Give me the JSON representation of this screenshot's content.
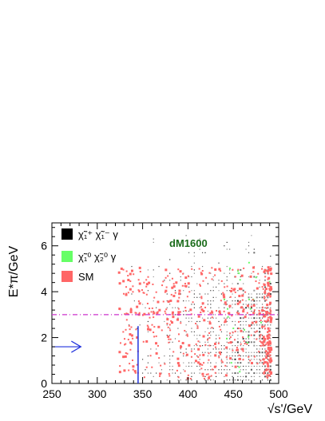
{
  "chart_data": {
    "type": "scatter",
    "title": "",
    "xlabel": "√s'/GeV",
    "ylabel": "E*π/GeV",
    "xlim": [
      250,
      500
    ],
    "ylim": [
      0,
      7
    ],
    "x_ticks": [
      "250",
      "300",
      "350",
      "400",
      "450",
      "500"
    ],
    "y_ticks": [
      "0",
      "2",
      "4",
      "6"
    ],
    "annotation": "dM1600",
    "legend_position": "top-left",
    "legend": [
      {
        "label": "χ̃₁⁺ χ̃₁⁻ γ",
        "color": "#000000"
      },
      {
        "label": "χ̃₁⁰ χ̃₂⁰ γ",
        "color": "#66ff66"
      },
      {
        "label": "SM",
        "color": "#ff6666"
      }
    ],
    "series": [
      {
        "name": "χ̃₁⁺ χ̃₁⁻ γ",
        "color": "#000000",
        "x_range": [
          330,
          492
        ],
        "y_range": [
          0.1,
          6.5
        ]
      },
      {
        "name": "χ̃₁⁰ χ̃₂⁰ γ",
        "color": "#66ff66",
        "x_range": [
          330,
          492
        ],
        "y_range": [
          0.1,
          6.5
        ]
      },
      {
        "name": "SM",
        "color": "#ff6666",
        "x_range": [
          324,
          492
        ],
        "y_range": [
          0.1,
          5.1
        ]
      }
    ],
    "cut_lines": [
      {
        "orientation": "horizontal",
        "value": 3.0,
        "style": "dash-dot",
        "color": "#cc33cc"
      },
      {
        "orientation": "vertical",
        "value": 345,
        "y_to": 2.5,
        "style": "solid",
        "color": "#2233dd"
      }
    ],
    "arrow": {
      "direction": "right",
      "x_from": 250,
      "x_to": 282,
      "y": 1.6,
      "color": "#2233dd"
    }
  }
}
